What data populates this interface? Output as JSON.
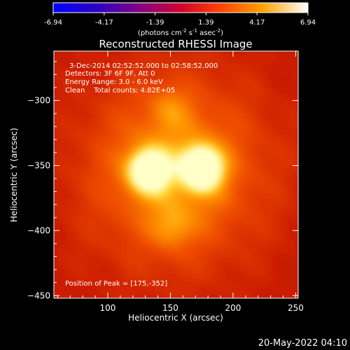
{
  "colorbar": {
    "ticks": [
      "-6.94",
      "-4.17",
      "-1.39",
      "1.39",
      "4.17",
      "6.94"
    ],
    "unit_prefix": "(photons cm",
    "unit_sup1": "-2",
    "unit_mid": " s",
    "unit_sup2": "-1",
    "unit_mid2": " asec",
    "unit_sup3": "-2",
    "unit_suffix": ")",
    "colors": [
      "#0000ff",
      "#5a0090",
      "#b00050",
      "#ff3000",
      "#ffa000",
      "#ffffff"
    ]
  },
  "chart_data": {
    "type": "heatmap",
    "title": "Reconstructed RHESSI Image",
    "xlabel": "Heliocentric X (arcsec)",
    "ylabel": "Heliocentric Y (arcsec)",
    "xlim": [
      57,
      252
    ],
    "ylim": [
      -452,
      -262
    ],
    "xticks": [
      100,
      150,
      200,
      250
    ],
    "yticks": [
      -300,
      -350,
      -400,
      -450
    ],
    "sources": [
      {
        "x": 175,
        "y": -352,
        "intensity": 1.0
      },
      {
        "x": 133,
        "y": -354,
        "intensity": 0.9
      },
      {
        "x": 152,
        "y": -398,
        "intensity": 0.25
      },
      {
        "x": 150,
        "y": -305,
        "intensity": 0.2
      }
    ],
    "annotations": {
      "time": "3-Dec-2014 02:52:52.000 to 02:58:52.000",
      "detectors": "Detectors: 3F 6F 9F, Att 0",
      "energy": "Energy Range: 3.0 - 6.0 keV",
      "clean": "Clean    Total counts: 4.82E+05",
      "peak": "Position of Peak = [175,-352]"
    }
  },
  "footer": {
    "date": "20-May-2022 04:10"
  }
}
